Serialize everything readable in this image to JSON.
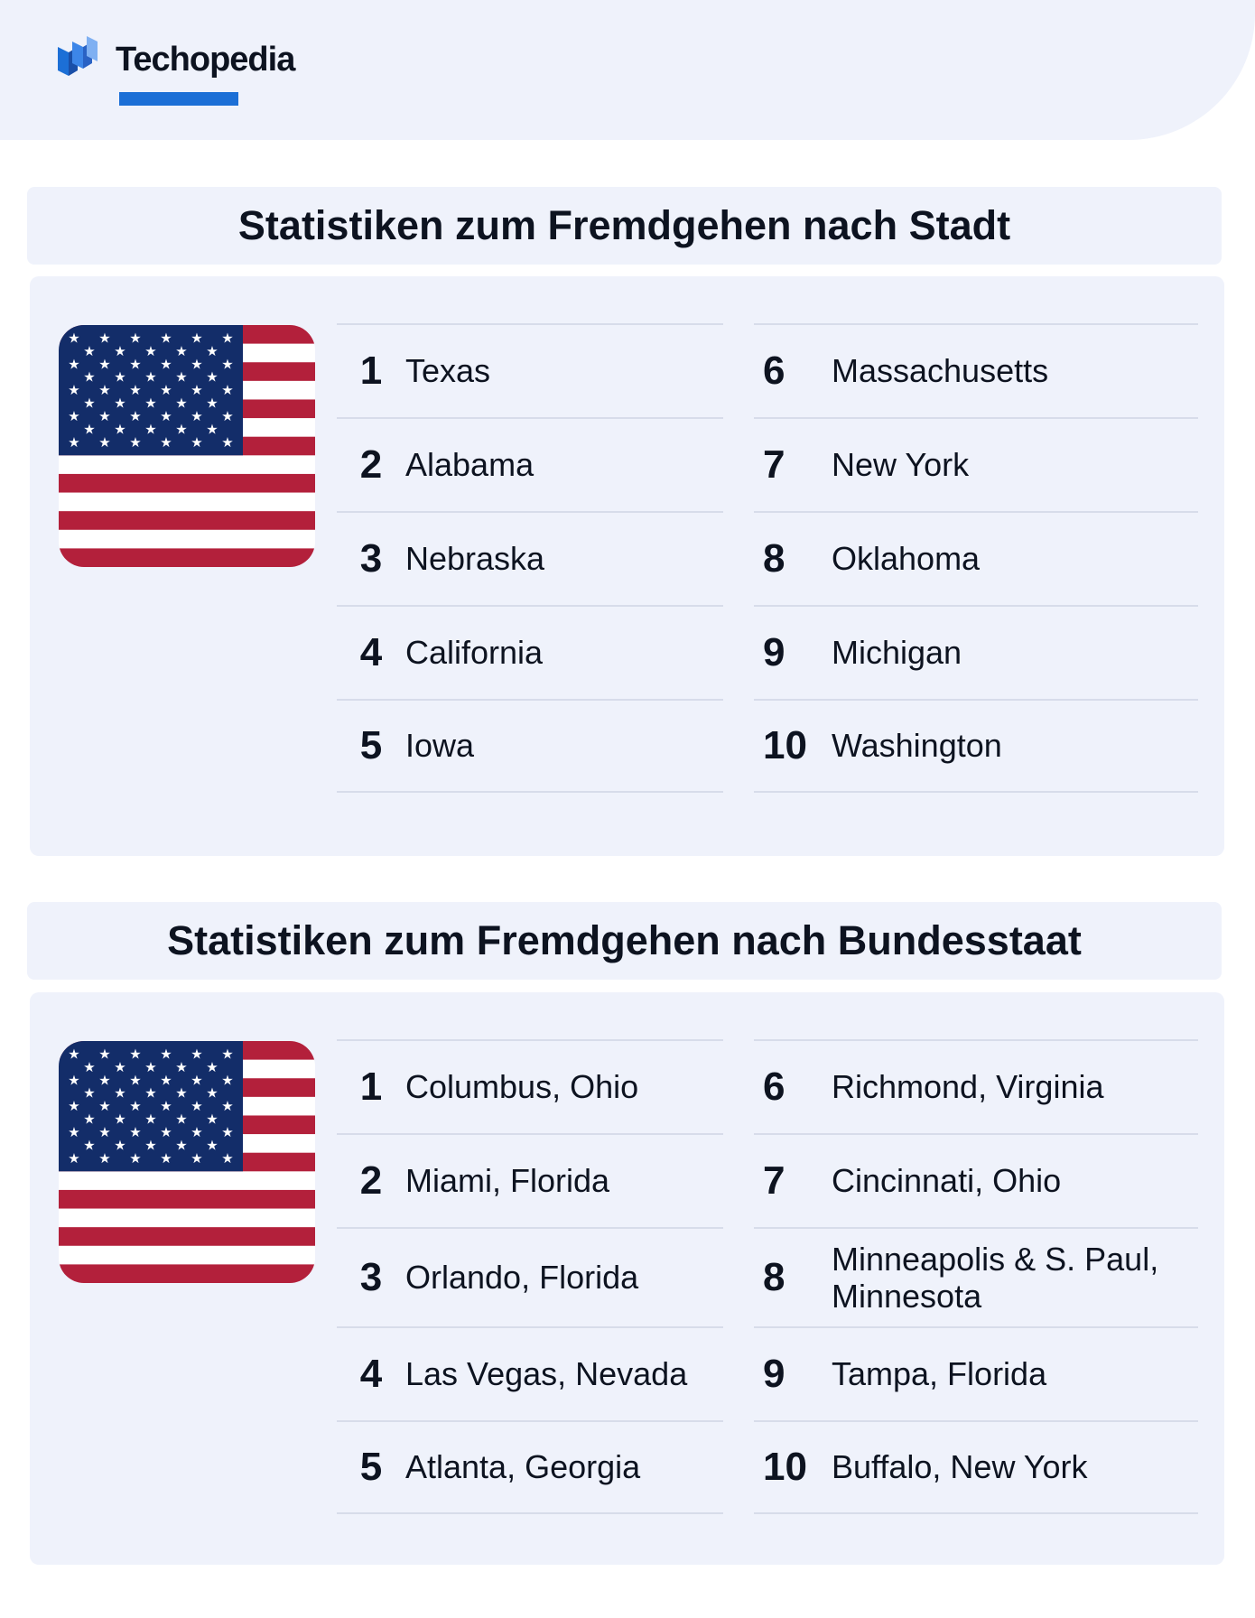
{
  "brand": {
    "name": "Techopedia",
    "color": "#1c6fd6"
  },
  "colors": {
    "background": "#ffffff",
    "panel": "#eff2fb",
    "flag_red": "#b3203b",
    "flag_blue": "#132d69",
    "divider": "#d7dcea"
  },
  "sections": [
    {
      "title": "Statistiken zum Fremdgehen nach Stadt",
      "icon": "us-flag-icon",
      "left": [
        {
          "rank": "1",
          "name": "Texas"
        },
        {
          "rank": "2",
          "name": "Alabama"
        },
        {
          "rank": "3",
          "name": "Nebraska"
        },
        {
          "rank": "4",
          "name": "California"
        },
        {
          "rank": "5",
          "name": "Iowa"
        }
      ],
      "right": [
        {
          "rank": "6",
          "name": "Massachusetts"
        },
        {
          "rank": "7",
          "name": "New York"
        },
        {
          "rank": "8",
          "name": "Oklahoma"
        },
        {
          "rank": "9",
          "name": "Michigan"
        },
        {
          "rank": "10",
          "name": "Washington"
        }
      ]
    },
    {
      "title": "Statistiken zum Fremdgehen nach Bundesstaat",
      "icon": "us-flag-icon",
      "left": [
        {
          "rank": "1",
          "name": "Columbus, Ohio"
        },
        {
          "rank": "2",
          "name": "Miami, Florida"
        },
        {
          "rank": "3",
          "name": "Orlando, Florida"
        },
        {
          "rank": "4",
          "name": "Las Vegas, Nevada"
        },
        {
          "rank": "5",
          "name": "Atlanta, Georgia"
        }
      ],
      "right": [
        {
          "rank": "6",
          "name": "Richmond, Virginia"
        },
        {
          "rank": "7",
          "name": "Cincinnati, Ohio"
        },
        {
          "rank": "8",
          "name": "Minneapolis & S. Paul, Minnesota"
        },
        {
          "rank": "9",
          "name": "Tampa, Florida"
        },
        {
          "rank": "10",
          "name": "Buffalo, New York"
        }
      ]
    }
  ]
}
